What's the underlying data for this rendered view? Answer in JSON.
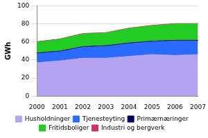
{
  "chart_data": {
    "type": "area",
    "y_label": "GWh",
    "categories": [
      "2000",
      "2001",
      "2002",
      "2003",
      "2004",
      "2005",
      "2006",
      "2007"
    ],
    "series": [
      {
        "name": "Husholdninger",
        "color": "#b3a3f0",
        "values": [
          37,
          39,
          42,
          42,
          44,
          46,
          45,
          46
        ]
      },
      {
        "name": "Tjenesteyting",
        "color": "#2a6bff",
        "values": [
          10,
          10,
          12,
          13,
          14,
          14,
          16,
          15
        ]
      },
      {
        "name": "Primærnæringer",
        "color": "#000066",
        "values": [
          0.8,
          0.8,
          0.8,
          0.8,
          0.8,
          0.8,
          0.8,
          0.8
        ]
      },
      {
        "name": "Fritidsboliger",
        "color": "#22cc22",
        "values": [
          12,
          13,
          14,
          14,
          16,
          17,
          18,
          18
        ]
      },
      {
        "name": "Industri og bergverk",
        "color": "#cc3366",
        "values": [
          0.5,
          0.5,
          0.5,
          0.5,
          0.5,
          0.5,
          0.5,
          0.5
        ]
      }
    ],
    "ylim": [
      0,
      100
    ],
    "yticks": [
      0,
      20,
      40,
      60,
      80,
      100
    ],
    "grid": true,
    "stacked": true,
    "legend": "bottom"
  }
}
